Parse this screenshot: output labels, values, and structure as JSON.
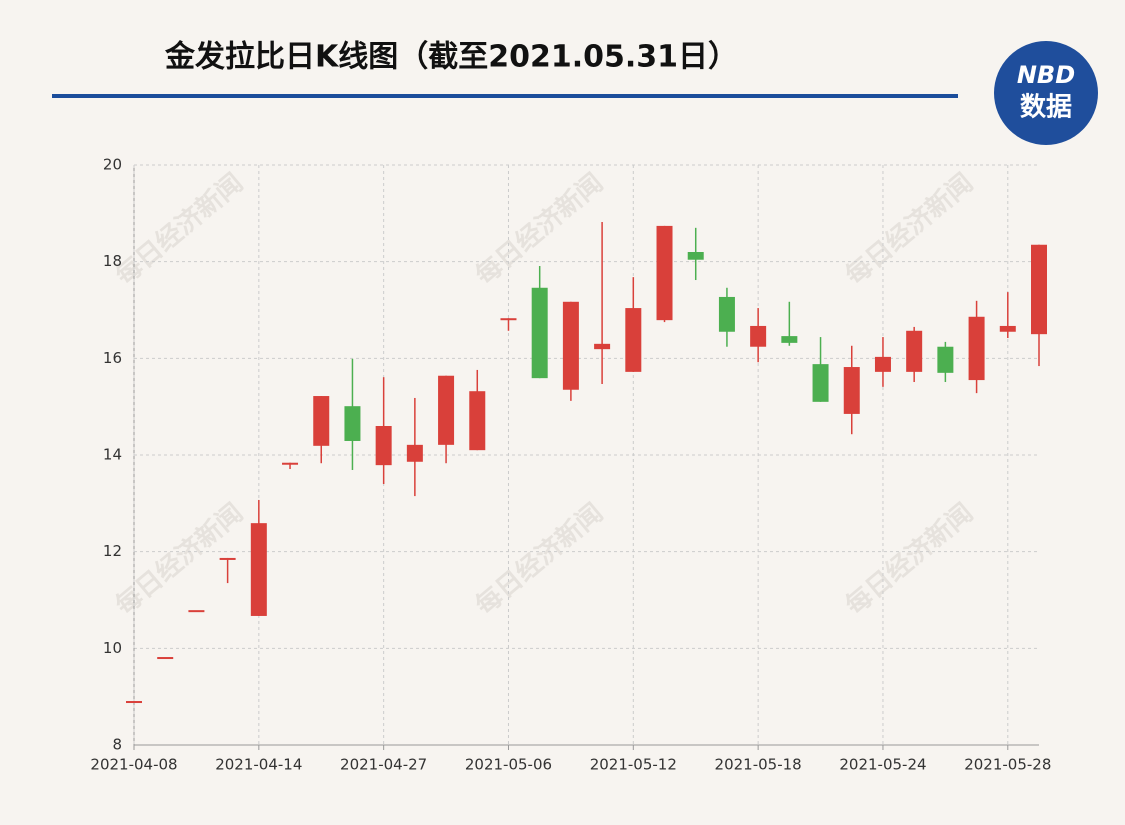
{
  "chart_data": {
    "type": "candlestick",
    "title": "金发拉比日K线图（截至2021.05.31日）",
    "logo": {
      "top": "NBD",
      "bottom": "数据"
    },
    "watermark": "每日经济新闻",
    "categories": [
      "2021-04-08",
      null,
      null,
      null,
      "2021-04-14",
      null,
      null,
      null,
      "2021-04-27",
      null,
      null,
      null,
      "2021-05-06",
      null,
      null,
      null,
      "2021-05-12",
      null,
      null,
      null,
      "2021-05-18",
      null,
      null,
      null,
      "2021-05-24",
      null,
      null,
      null,
      "2021-05-28",
      null
    ],
    "open": [
      8.91,
      9.82,
      10.79,
      11.87,
      10.67,
      13.84,
      14.19,
      15.01,
      13.79,
      13.86,
      14.21,
      14.1,
      16.83,
      17.46,
      15.35,
      16.19,
      15.72,
      16.79,
      18.2,
      17.27,
      16.24,
      16.46,
      15.88,
      14.85,
      15.72,
      15.72,
      16.24,
      15.55,
      16.55,
      16.5
    ],
    "high": [
      8.91,
      9.82,
      10.79,
      11.87,
      13.07,
      13.84,
      15.22,
      15.99,
      15.61,
      15.18,
      15.64,
      15.76,
      16.83,
      17.91,
      17.17,
      18.82,
      17.68,
      18.74,
      18.7,
      17.46,
      17.04,
      17.17,
      16.44,
      16.26,
      16.44,
      16.65,
      16.34,
      17.19,
      17.37,
      18.35
    ],
    "low": [
      8.91,
      9.82,
      10.79,
      11.35,
      10.67,
      13.71,
      13.83,
      13.69,
      13.4,
      13.15,
      13.83,
      14.1,
      16.57,
      15.59,
      15.12,
      15.47,
      15.72,
      16.75,
      17.62,
      16.24,
      15.92,
      16.26,
      15.1,
      14.43,
      15.41,
      15.51,
      15.51,
      15.28,
      16.42,
      15.84
    ],
    "close": [
      8.91,
      9.82,
      10.79,
      11.87,
      12.59,
      13.84,
      15.22,
      14.29,
      14.6,
      14.21,
      15.64,
      15.32,
      16.83,
      15.59,
      17.17,
      16.3,
      17.04,
      18.74,
      18.04,
      16.55,
      16.67,
      16.32,
      15.1,
      15.82,
      16.03,
      16.57,
      15.7,
      16.86,
      16.67,
      18.35
    ],
    "up_color": "#d9403a",
    "down_color": "#4caf50",
    "ylim": [
      8,
      20
    ],
    "yticks": [
      8,
      10,
      12,
      14,
      16,
      18,
      20
    ],
    "grid": true
  }
}
